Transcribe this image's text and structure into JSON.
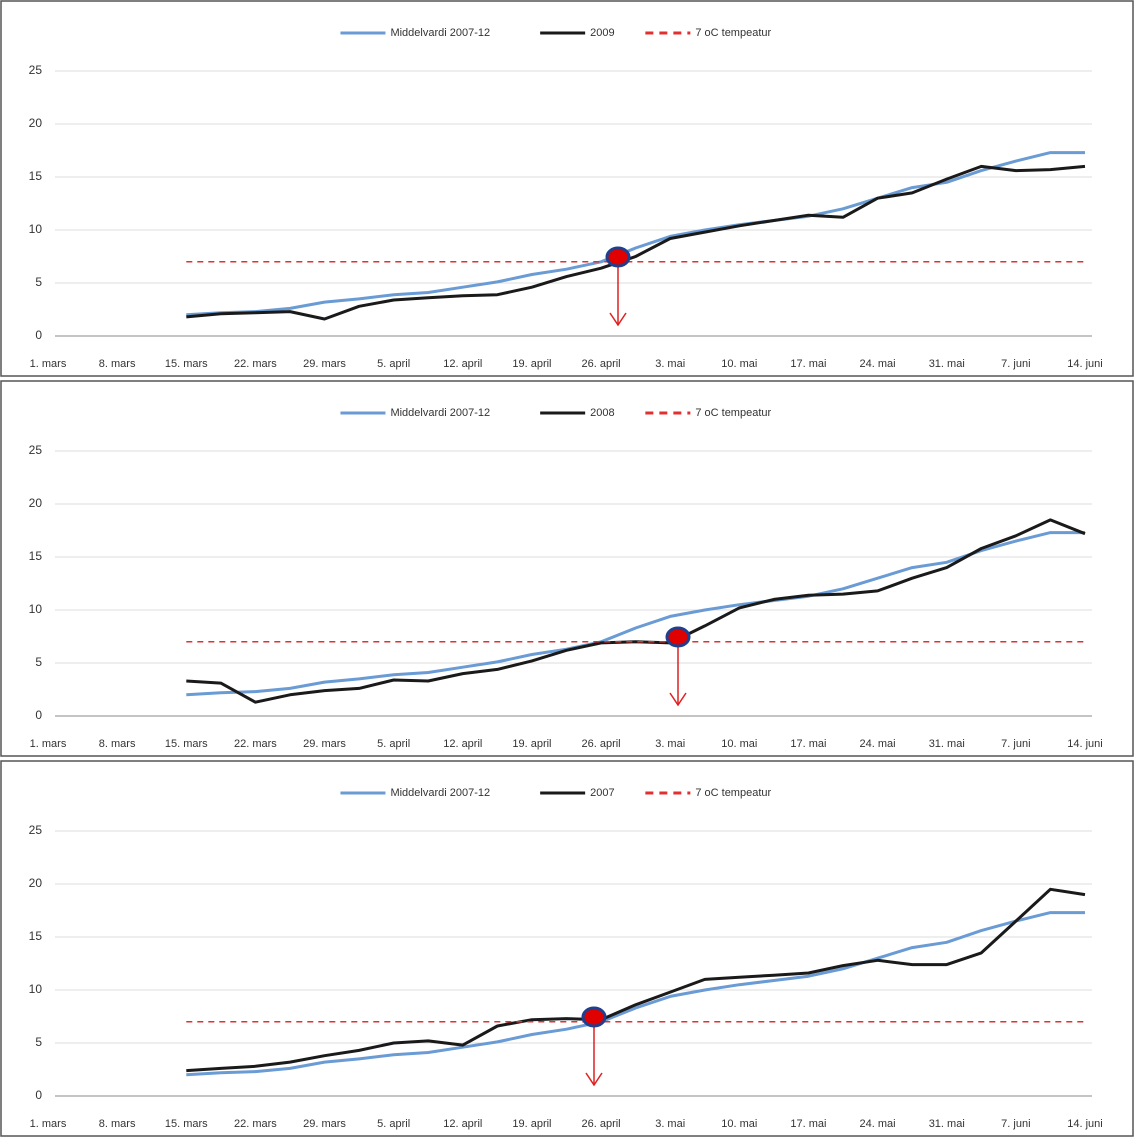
{
  "chart_data": [
    {
      "type": "line",
      "categories": [
        "1. mars",
        null,
        "8. mars",
        null,
        "15. mars",
        null,
        "22. mars",
        null,
        "29. mars",
        null,
        "5. april",
        null,
        "12. april",
        null,
        "19. april",
        null,
        "26. april",
        null,
        "3. mai",
        null,
        "10. mai",
        null,
        "17. mai",
        null,
        "24. mai",
        null,
        "31. mai",
        null,
        "7. juni",
        null,
        "14. juni"
      ],
      "series": [
        {
          "name": "Middelvardi 2007-12",
          "color": "#6a9bd4",
          "values": [
            null,
            null,
            null,
            null,
            2.0,
            2.2,
            2.3,
            2.6,
            3.2,
            3.5,
            3.9,
            4.1,
            4.6,
            5.1,
            5.8,
            6.3,
            7.0,
            8.3,
            9.4,
            10.0,
            10.5,
            10.9,
            11.3,
            12.0,
            13.0,
            14.0,
            14.5,
            15.6,
            16.5,
            17.3,
            17.3
          ]
        },
        {
          "name": "2009",
          "color": "#1a1a1a",
          "values": [
            null,
            null,
            null,
            null,
            1.8,
            2.1,
            2.2,
            2.3,
            1.6,
            2.8,
            3.4,
            3.6,
            3.8,
            3.9,
            4.6,
            5.6,
            6.4,
            7.5,
            9.2,
            9.8,
            10.4,
            10.9,
            11.4,
            11.2,
            13.0,
            13.5,
            14.8,
            16.0,
            15.6,
            15.7,
            16.0
          ]
        },
        {
          "name": "7 oC tempeatur",
          "color": "#e03030",
          "linestyle": "dashed",
          "values": [
            null,
            null,
            null,
            null,
            7,
            7,
            7,
            7,
            7,
            7,
            7,
            7,
            7,
            7,
            7,
            7,
            7,
            7,
            7,
            7,
            7,
            7,
            7,
            7,
            7,
            7,
            7,
            7,
            7,
            7,
            7
          ]
        }
      ],
      "ylim": [
        0,
        25
      ],
      "yticks": [
        0,
        5,
        10,
        15,
        20,
        25
      ],
      "grid": true,
      "legend": "top"
    },
    {
      "type": "line",
      "categories": [
        "1. mars",
        null,
        "8. mars",
        null,
        "15. mars",
        null,
        "22. mars",
        null,
        "29. mars",
        null,
        "5. april",
        null,
        "12. april",
        null,
        "19. april",
        null,
        "26. april",
        null,
        "3. mai",
        null,
        "10. mai",
        null,
        "17. mai",
        null,
        "24. mai",
        null,
        "31. mai",
        null,
        "7. juni",
        null,
        "14. juni"
      ],
      "series": [
        {
          "name": "Middelvardi 2007-12",
          "color": "#6a9bd4",
          "values": [
            null,
            null,
            null,
            null,
            2.0,
            2.2,
            2.3,
            2.6,
            3.2,
            3.5,
            3.9,
            4.1,
            4.6,
            5.1,
            5.8,
            6.3,
            7.0,
            8.3,
            9.4,
            10.0,
            10.5,
            10.9,
            11.3,
            12.0,
            13.0,
            14.0,
            14.5,
            15.6,
            16.5,
            17.3,
            17.3
          ]
        },
        {
          "name": "2008",
          "color": "#1a1a1a",
          "values": [
            null,
            null,
            null,
            null,
            3.3,
            3.1,
            1.3,
            2.0,
            2.4,
            2.6,
            3.4,
            3.3,
            4.0,
            4.4,
            5.2,
            6.2,
            6.9,
            7.0,
            6.9,
            8.5,
            10.2,
            11.0,
            11.4,
            11.5,
            11.8,
            13.0,
            14.0,
            15.8,
            17.0,
            18.5,
            17.2
          ]
        },
        {
          "name": "7 oC tempeatur",
          "color": "#e03030",
          "linestyle": "dashed",
          "values": [
            null,
            null,
            null,
            null,
            7,
            7,
            7,
            7,
            7,
            7,
            7,
            7,
            7,
            7,
            7,
            7,
            7,
            7,
            7,
            7,
            7,
            7,
            7,
            7,
            7,
            7,
            7,
            7,
            7,
            7,
            7
          ]
        }
      ],
      "ylim": [
        0,
        25
      ],
      "yticks": [
        0,
        5,
        10,
        15,
        20,
        25
      ],
      "grid": true,
      "legend": "top"
    },
    {
      "type": "line",
      "categories": [
        "1. mars",
        null,
        "8. mars",
        null,
        "15. mars",
        null,
        "22. mars",
        null,
        "29. mars",
        null,
        "5. april",
        null,
        "12. april",
        null,
        "19. april",
        null,
        "26. april",
        null,
        "3. mai",
        null,
        "10. mai",
        null,
        "17. mai",
        null,
        "24. mai",
        null,
        "31. mai",
        null,
        "7. juni",
        null,
        "14. juni"
      ],
      "series": [
        {
          "name": "Middelvardi 2007-12",
          "color": "#6a9bd4",
          "values": [
            null,
            null,
            null,
            null,
            2.0,
            2.2,
            2.3,
            2.6,
            3.2,
            3.5,
            3.9,
            4.1,
            4.6,
            5.1,
            5.8,
            6.3,
            7.0,
            8.3,
            9.4,
            10.0,
            10.5,
            10.9,
            11.3,
            12.0,
            13.0,
            14.0,
            14.5,
            15.6,
            16.5,
            17.3,
            17.3
          ]
        },
        {
          "name": "2007",
          "color": "#1a1a1a",
          "values": [
            null,
            null,
            null,
            null,
            2.4,
            2.6,
            2.8,
            3.2,
            3.8,
            4.3,
            5.0,
            5.2,
            4.8,
            6.6,
            7.2,
            7.3,
            7.2,
            8.6,
            9.8,
            11.0,
            11.2,
            11.4,
            11.6,
            12.3,
            12.8,
            12.4,
            12.4,
            13.5,
            16.5,
            19.5,
            19.0
          ]
        },
        {
          "name": "7 oC tempeatur",
          "color": "#e03030",
          "linestyle": "dashed",
          "values": [
            null,
            null,
            null,
            null,
            7,
            7,
            7,
            7,
            7,
            7,
            7,
            7,
            7,
            7,
            7,
            7,
            7,
            7,
            7,
            7,
            7,
            7,
            7,
            7,
            7,
            7,
            7,
            7,
            7,
            7,
            7
          ]
        }
      ],
      "ylim": [
        0,
        25
      ],
      "yticks": [
        0,
        5,
        10,
        15,
        20,
        25
      ],
      "grid": true,
      "legend": "top"
    }
  ]
}
